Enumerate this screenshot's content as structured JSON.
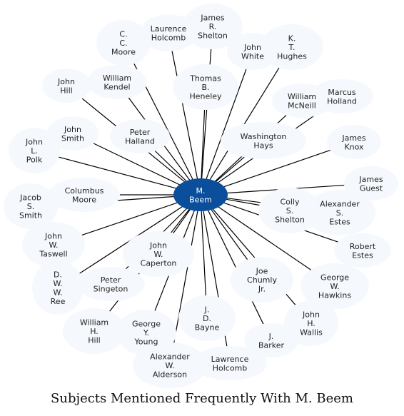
{
  "caption": "Subjects Mentioned Frequently With M. Beem",
  "colors": {
    "center_fill": "#0b4f9c",
    "node_fill": "#f5f8fd",
    "edge": "#000000",
    "center_text": "#ffffff",
    "text": "#222222"
  },
  "center": {
    "label": [
      "M.",
      "Beem"
    ]
  },
  "nodes": [
    {
      "id": "james-r-shelton",
      "label": [
        "James",
        "R.",
        "Shelton"
      ]
    },
    {
      "id": "laurence-holcomb",
      "label": [
        "Laurence",
        "Holcomb"
      ]
    },
    {
      "id": "c-c-moore",
      "label": [
        "C.",
        "C.",
        "Moore"
      ]
    },
    {
      "id": "john-white",
      "label": [
        "John",
        "White"
      ]
    },
    {
      "id": "k-t-hughes",
      "label": [
        "K.",
        "T.",
        "Hughes"
      ]
    },
    {
      "id": "john-hill",
      "label": [
        "John",
        "Hill"
      ]
    },
    {
      "id": "william-kendel",
      "label": [
        "William",
        "Kendel"
      ]
    },
    {
      "id": "thomas-b-heneley",
      "label": [
        "Thomas",
        "B.",
        "Heneley"
      ]
    },
    {
      "id": "marcus-holland",
      "label": [
        "Marcus",
        "Holland"
      ]
    },
    {
      "id": "william-mcneill",
      "label": [
        "William",
        "McNeill"
      ]
    },
    {
      "id": "john-smith",
      "label": [
        "John",
        "Smith"
      ]
    },
    {
      "id": "peter-halland",
      "label": [
        "Peter",
        "Halland"
      ]
    },
    {
      "id": "washington-hays",
      "label": [
        "Washington",
        "Hays"
      ]
    },
    {
      "id": "james-knox",
      "label": [
        "James",
        "Knox"
      ]
    },
    {
      "id": "john-l-polk",
      "label": [
        "John",
        "L.",
        "Polk"
      ]
    },
    {
      "id": "james-guest",
      "label": [
        "James",
        "Guest"
      ]
    },
    {
      "id": "columbus-moore",
      "label": [
        "Columbus",
        "Moore"
      ]
    },
    {
      "id": "jacob-s-smith",
      "label": [
        "Jacob",
        "S.",
        "Smith"
      ]
    },
    {
      "id": "colly-s-shelton",
      "label": [
        "Colly",
        "S.",
        "Shelton"
      ]
    },
    {
      "id": "alexander-s-estes",
      "label": [
        "Alexander",
        "S.",
        "Estes"
      ]
    },
    {
      "id": "john-w-taswell",
      "label": [
        "John",
        "W.",
        "Taswell"
      ]
    },
    {
      "id": "robert-estes",
      "label": [
        "Robert",
        "Estes"
      ]
    },
    {
      "id": "john-w-caperton",
      "label": [
        "John",
        "W.",
        "Caperton"
      ]
    },
    {
      "id": "d-w-w-ree",
      "label": [
        "D.",
        "W.",
        "W.",
        "Ree"
      ]
    },
    {
      "id": "peter-singeton",
      "label": [
        "Peter",
        "Singeton"
      ]
    },
    {
      "id": "joe-chumly-jr",
      "label": [
        "Joe",
        "Chumly",
        "Jr."
      ]
    },
    {
      "id": "george-w-hawkins",
      "label": [
        "George",
        "W.",
        "Hawkins"
      ]
    },
    {
      "id": "john-h-wallis",
      "label": [
        "John",
        "H.",
        "Wallis"
      ]
    },
    {
      "id": "j-d-bayne",
      "label": [
        "J.",
        "D.",
        "Bayne"
      ]
    },
    {
      "id": "william-h-hill",
      "label": [
        "William",
        "H.",
        "Hill"
      ]
    },
    {
      "id": "george-y-young",
      "label": [
        "George",
        "Y.",
        "Young"
      ]
    },
    {
      "id": "j-barker",
      "label": [
        "J.",
        "Barker"
      ]
    },
    {
      "id": "alexander-w-alderson",
      "label": [
        "Alexander",
        "W.",
        "Alderson"
      ]
    },
    {
      "id": "lawrence-holcomb",
      "label": [
        "Lawrence",
        "Holcomb"
      ]
    }
  ]
}
